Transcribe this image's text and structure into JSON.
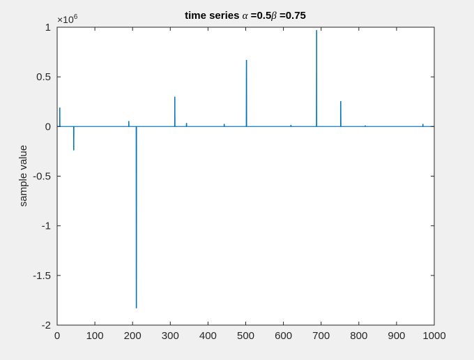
{
  "chart_data": {
    "type": "line",
    "title": {
      "prefix": "time series ",
      "alpha_symbol": "α",
      "alpha_value": " =0.5",
      "beta_symbol": "β",
      "beta_value": " =0.75"
    },
    "xlabel": "",
    "ylabel": "sample value",
    "xlim": [
      0,
      1000
    ],
    "ylim": [
      -2000000,
      1000000
    ],
    "y_multiplier": {
      "base": "×10",
      "exponent": "6"
    },
    "x_ticks": [
      0,
      100,
      200,
      300,
      400,
      500,
      600,
      700,
      800,
      900,
      1000
    ],
    "x_tick_labels": [
      "0",
      "100",
      "200",
      "300",
      "400",
      "500",
      "600",
      "700",
      "800",
      "900",
      "1000"
    ],
    "y_ticks": [
      1000000,
      500000,
      0,
      -500000,
      -1000000,
      -1500000,
      -2000000
    ],
    "y_tick_labels": [
      "1",
      "0.5",
      "0",
      "-0.5",
      "-1",
      "-1.5",
      "-2"
    ],
    "grid": false,
    "series": [
      {
        "color": "#0072bd",
        "spikes": [
          {
            "x": 7,
            "y": 190000
          },
          {
            "x": 44,
            "y": -240000
          },
          {
            "x": 190,
            "y": 55000
          },
          {
            "x": 210,
            "y": -1830000
          },
          {
            "x": 312,
            "y": 300000
          },
          {
            "x": 343,
            "y": 35000
          },
          {
            "x": 443,
            "y": 25000
          },
          {
            "x": 502,
            "y": 670000
          },
          {
            "x": 620,
            "y": 15000
          },
          {
            "x": 688,
            "y": 970000
          },
          {
            "x": 752,
            "y": 255000
          },
          {
            "x": 817,
            "y": 10000
          },
          {
            "x": 970,
            "y": 25000
          }
        ]
      }
    ]
  }
}
